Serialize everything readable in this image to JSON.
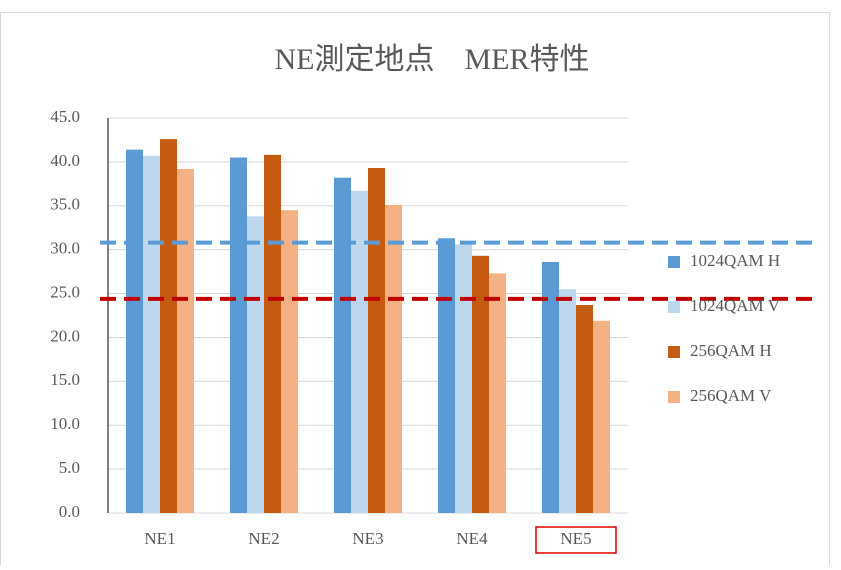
{
  "chart_data": {
    "type": "bar",
    "title": "NE測定地点　MER特性",
    "categories": [
      "NE1",
      "NE2",
      "NE3",
      "NE4",
      "NE5"
    ],
    "series": [
      {
        "name": "1024QAM H",
        "color": "#5b9bd5",
        "values": [
          41.4,
          40.5,
          38.2,
          31.3,
          28.6
        ]
      },
      {
        "name": "1024QAM V",
        "color": "#bdd7ee",
        "values": [
          40.7,
          33.8,
          36.7,
          30.6,
          25.5
        ]
      },
      {
        "name": "256QAM H",
        "color": "#c55a11",
        "values": [
          42.6,
          40.8,
          39.3,
          29.3,
          23.7
        ]
      },
      {
        "name": "256QAM V",
        "color": "#f4b183",
        "values": [
          39.2,
          34.5,
          35.1,
          27.3,
          21.9
        ]
      }
    ],
    "ylim": [
      0,
      45
    ],
    "yticks": [
      {
        "value": 0,
        "label": "0.0"
      },
      {
        "value": 5,
        "label": "5.0"
      },
      {
        "value": 10,
        "label": "10.0"
      },
      {
        "value": 15,
        "label": "15.0"
      },
      {
        "value": 20,
        "label": "20.0"
      },
      {
        "value": 25,
        "label": "25.0"
      },
      {
        "value": 30,
        "label": "30.0"
      },
      {
        "value": 35,
        "label": "35.0"
      },
      {
        "value": 40,
        "label": "40.0"
      },
      {
        "value": 45,
        "label": "45.0"
      }
    ],
    "grid": true,
    "legend": "right",
    "reference_lines": [
      {
        "value": 30.8,
        "color": "#5b9bd5"
      },
      {
        "value": 24.4,
        "color": "#c00000"
      }
    ],
    "highlight": "NE5"
  }
}
